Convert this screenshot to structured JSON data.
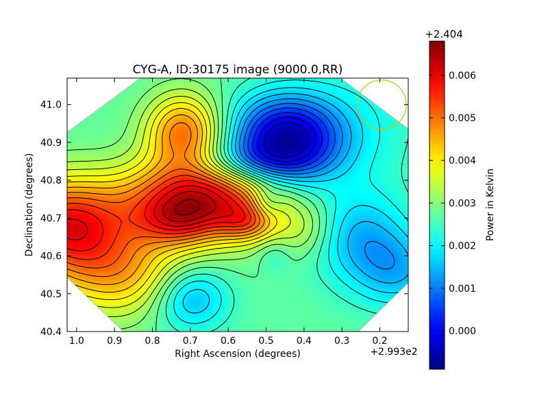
{
  "chart_data": {
    "type": "heatmap",
    "title": "CYG-A, ID:30175 image (9000.0,RR)",
    "xlabel": "Right Ascension (degrees)",
    "ylabel": "Declination (degrees)",
    "x_offset_label": "+2.993e2",
    "xlim": [
      1.025,
      0.125
    ],
    "ylim": [
      40.4,
      41.07
    ],
    "x_ticks": [
      {
        "value": 1.0,
        "label": "1.0"
      },
      {
        "value": 0.9,
        "label": "0.9"
      },
      {
        "value": 0.8,
        "label": "0.8"
      },
      {
        "value": 0.7,
        "label": "0.7"
      },
      {
        "value": 0.6,
        "label": "0.6"
      },
      {
        "value": 0.5,
        "label": "0.5"
      },
      {
        "value": 0.4,
        "label": "0.4"
      },
      {
        "value": 0.3,
        "label": "0.3"
      },
      {
        "value": 0.2,
        "label": "0.2"
      }
    ],
    "y_ticks": [
      {
        "value": 40.4,
        "label": "40.4"
      },
      {
        "value": 40.5,
        "label": "40.5"
      },
      {
        "value": 40.6,
        "label": "40.6"
      },
      {
        "value": 40.7,
        "label": "40.7"
      },
      {
        "value": 40.8,
        "label": "40.8"
      },
      {
        "value": 40.9,
        "label": "40.9"
      },
      {
        "value": 41.0,
        "label": "41.0"
      }
    ],
    "colorbar": {
      "label": "Power in Kelvin",
      "offset_label": "+2.404",
      "range": [
        -0.0009,
        0.0068
      ],
      "ticks": [
        {
          "value": 0.0,
          "label": "0.000"
        },
        {
          "value": 0.001,
          "label": "0.001"
        },
        {
          "value": 0.002,
          "label": "0.002"
        },
        {
          "value": 0.003,
          "label": "0.003"
        },
        {
          "value": 0.004,
          "label": "0.004"
        },
        {
          "value": 0.005,
          "label": "0.005"
        },
        {
          "value": 0.006,
          "label": "0.006"
        }
      ],
      "colormap": "jet"
    },
    "grid": false,
    "background_value": 0.0027,
    "features": [
      {
        "kind": "peak",
        "ra": 0.67,
        "dec": 40.75,
        "amplitude": 0.0035,
        "sigma_ra": 0.14,
        "sigma_dec": 0.075
      },
      {
        "kind": "peak",
        "ra": 0.74,
        "dec": 40.69,
        "amplitude": 0.001,
        "sigma_ra": 0.07,
        "sigma_dec": 0.045
      },
      {
        "kind": "peak",
        "ra": 1.03,
        "dec": 40.68,
        "amplitude": 0.0031,
        "sigma_ra": 0.12,
        "sigma_dec": 0.09
      },
      {
        "kind": "peak",
        "ra": 0.72,
        "dec": 40.93,
        "amplitude": 0.0022,
        "sigma_ra": 0.07,
        "sigma_dec": 0.07
      },
      {
        "kind": "peak",
        "ra": 0.55,
        "dec": 40.69,
        "amplitude": 0.0011,
        "sigma_ra": 0.05,
        "sigma_dec": 0.035
      },
      {
        "kind": "peak",
        "ra": 0.88,
        "dec": 40.55,
        "amplitude": 0.0015,
        "sigma_ra": 0.12,
        "sigma_dec": 0.08
      },
      {
        "kind": "peak",
        "ra": 0.4,
        "dec": 40.67,
        "amplitude": 0.0006,
        "sigma_ra": 0.05,
        "sigma_dec": 0.05
      },
      {
        "kind": "trough",
        "ra": 0.45,
        "dec": 40.91,
        "amplitude": -0.0033,
        "sigma_ra": 0.1,
        "sigma_dec": 0.08
      },
      {
        "kind": "trough",
        "ra": 0.56,
        "dec": 40.85,
        "amplitude": -0.001,
        "sigma_ra": 0.1,
        "sigma_dec": 0.04
      },
      {
        "kind": "trough",
        "ra": 0.7,
        "dec": 40.49,
        "amplitude": -0.0014,
        "sigma_ra": 0.07,
        "sigma_dec": 0.06
      },
      {
        "kind": "trough",
        "ra": 0.25,
        "dec": 40.65,
        "amplitude": -0.0012,
        "sigma_ra": 0.09,
        "sigma_dec": 0.09
      },
      {
        "kind": "trough",
        "ra": 0.5,
        "dec": 40.74,
        "amplitude": -0.0007,
        "sigma_ra": 0.03,
        "sigma_dec": 0.03
      },
      {
        "kind": "trough",
        "ra": 0.48,
        "dec": 40.6,
        "amplitude": -0.0004,
        "sigma_ra": 0.03,
        "sigma_dec": 0.03
      },
      {
        "kind": "trough",
        "ra": 0.15,
        "dec": 40.56,
        "amplitude": -0.001,
        "sigma_ra": 0.08,
        "sigma_dec": 0.07
      },
      {
        "kind": "trough",
        "ra": 0.25,
        "dec": 40.95,
        "amplitude": -0.0005,
        "sigma_ra": 0.12,
        "sigma_dec": 0.12
      }
    ],
    "beam_circle": {
      "ra": 0.195,
      "dec": 41.0,
      "radius_deg": 0.065,
      "color": "#c8c800"
    }
  }
}
